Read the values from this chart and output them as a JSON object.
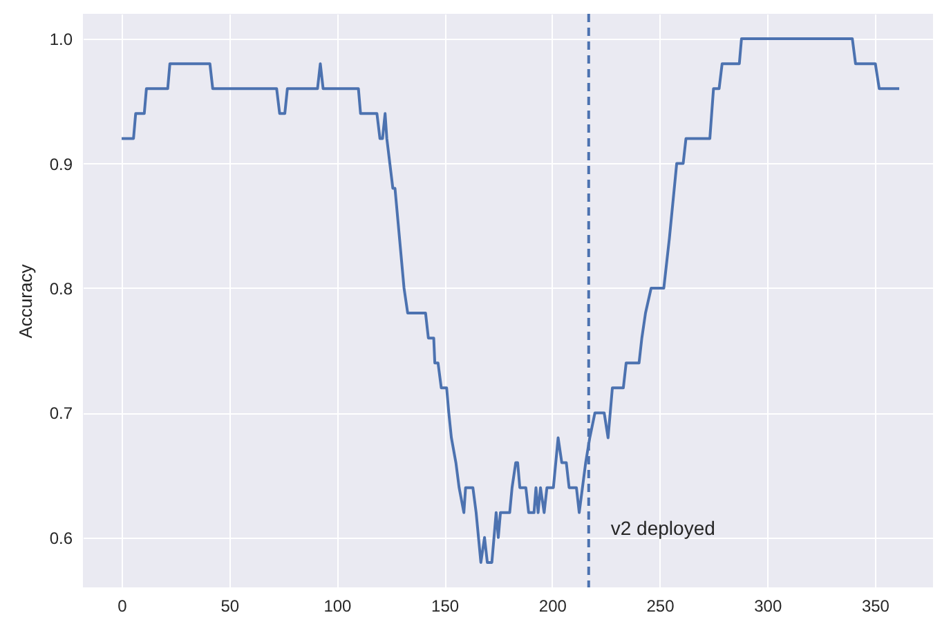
{
  "chart_data": {
    "type": "line",
    "ylabel": "Accuracy",
    "xlim": [
      -18,
      377
    ],
    "xticks": [
      0,
      50,
      100,
      150,
      200,
      250,
      300,
      350
    ],
    "ylim": [
      0.56,
      1.02
    ],
    "yticks": [
      0.6,
      0.7,
      0.8,
      0.9,
      {
        "value": 1,
        "label": "1.0"
      }
    ],
    "grid": true,
    "line_style": "solid",
    "ref_lines": [
      {
        "axis": "x",
        "value": 217,
        "label": "v2 deployed",
        "color": "#4c72b0",
        "line_style": "dashed"
      }
    ],
    "series": [
      {
        "color": "#4c72b0",
        "x": [
          0,
          5.5,
          6.5,
          10.5,
          11.5,
          21.4,
          22.4,
          41,
          42.3,
          72,
          73.4,
          75.8,
          77,
          91,
          92.3,
          93.6,
          110,
          111,
          118.6,
          120,
          121.2,
          122.4,
          123.2,
          124.6,
          126,
          127,
          131.2,
          132.9,
          141.2,
          142.5,
          145,
          145.5,
          147,
          148.5,
          151,
          152,
          153.2,
          155.3,
          156.8,
          159,
          159.8,
          163.2,
          164.7,
          166.9,
          168.6,
          169.9,
          172,
          174,
          175,
          176,
          180.3,
          181.4,
          183.1,
          184,
          185,
          187.8,
          189.1,
          191.6,
          192.5,
          193.5,
          194.6,
          196.3,
          197.6,
          200.6,
          202.8,
          204.5,
          206.6,
          207.9,
          211.3,
          212.6,
          214.1,
          215.6,
          217.5,
          219.9,
          224.2,
          226,
          228,
          233.1,
          234.4,
          240.4,
          241.7,
          243.4,
          246,
          251.9,
          254.5,
          257.9,
          260.9,
          262.2,
          273.3,
          275,
          277.6,
          279,
          287,
          288,
          339.5,
          341,
          350.2,
          352,
          361.3
        ],
        "values": [
          0.92,
          0.92,
          0.94,
          0.94,
          0.96,
          0.96,
          0.98,
          0.98,
          0.96,
          0.96,
          0.94,
          0.94,
          0.96,
          0.96,
          0.98,
          0.96,
          0.96,
          0.94,
          0.94,
          0.92,
          0.92,
          0.94,
          0.92,
          0.9,
          0.88,
          0.88,
          0.8,
          0.78,
          0.78,
          0.76,
          0.76,
          0.74,
          0.74,
          0.72,
          0.72,
          0.7,
          0.68,
          0.66,
          0.64,
          0.62,
          0.64,
          0.64,
          0.62,
          0.58,
          0.6,
          0.58,
          0.58,
          0.62,
          0.6,
          0.62,
          0.62,
          0.64,
          0.66,
          0.66,
          0.64,
          0.64,
          0.62,
          0.62,
          0.64,
          0.62,
          0.64,
          0.62,
          0.64,
          0.64,
          0.68,
          0.66,
          0.66,
          0.64,
          0.64,
          0.62,
          0.64,
          0.66,
          0.68,
          0.7,
          0.7,
          0.68,
          0.72,
          0.72,
          0.74,
          0.74,
          0.76,
          0.78,
          0.8,
          0.8,
          0.84,
          0.9,
          0.9,
          0.92,
          0.92,
          0.96,
          0.96,
          0.98,
          0.98,
          1.0,
          1.0,
          0.98,
          0.98,
          0.96,
          0.96
        ]
      }
    ]
  }
}
